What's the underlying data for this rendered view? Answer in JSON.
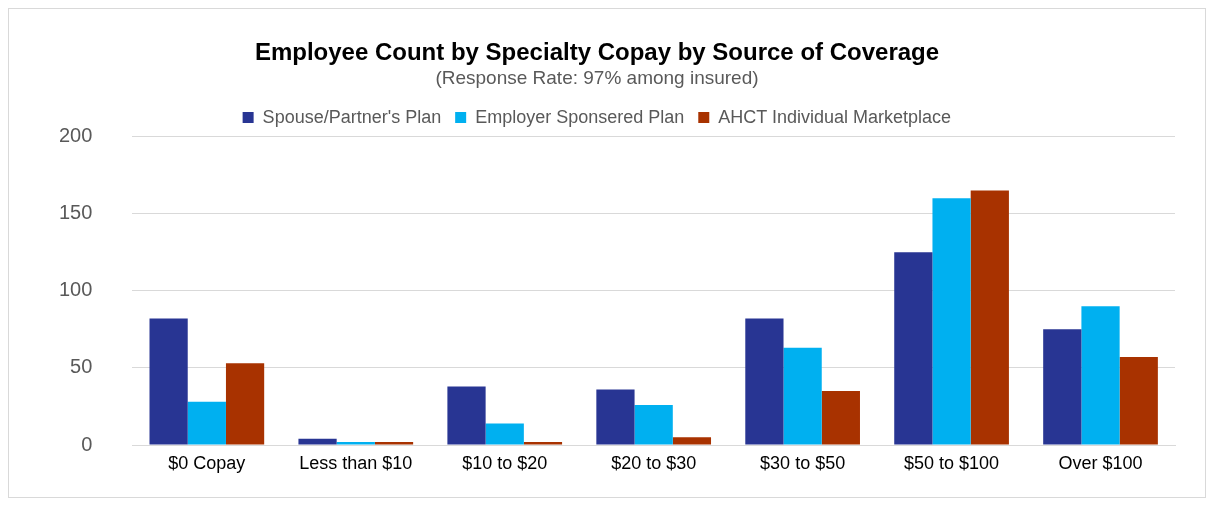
{
  "chart_data": {
    "type": "bar",
    "title": "Employee Count by Specialty Copay by Source of Coverage",
    "subtitle": "(Response Rate: 97% among insured)",
    "categories": [
      "$0 Copay",
      "Less than $10",
      "$10 to $20",
      "$20 to $30",
      "$30 to $50",
      "$50 to $100",
      "Over $100"
    ],
    "series": [
      {
        "name": "Spouse/Partner's Plan",
        "color": "#283593",
        "values": [
          82,
          4,
          38,
          36,
          82,
          125,
          75
        ]
      },
      {
        "name": "Employer Sponsered Plan",
        "color": "#00b0f0",
        "values": [
          28,
          2,
          14,
          26,
          63,
          160,
          90
        ]
      },
      {
        "name": "AHCT Individual Marketplace",
        "color": "#a83200",
        "values": [
          53,
          2,
          2,
          5,
          35,
          165,
          57
        ]
      }
    ],
    "ylim": [
      0,
      200
    ],
    "yticks": [
      0,
      50,
      100,
      150,
      200
    ],
    "grid": "y",
    "legend": "top"
  }
}
